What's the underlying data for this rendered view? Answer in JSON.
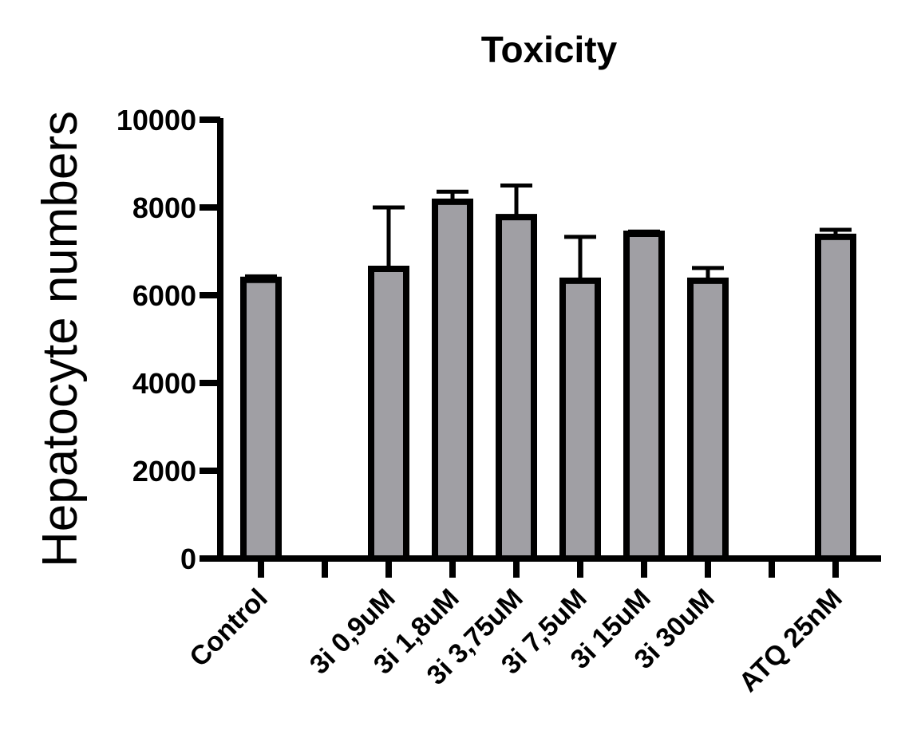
{
  "chart_data": {
    "type": "bar",
    "title": "Toxicity",
    "xlabel": "",
    "ylabel": "Hepatocyte numbers",
    "ylim": [
      0,
      10000
    ],
    "yticks": [
      0,
      2000,
      4000,
      6000,
      8000,
      10000
    ],
    "categories": [
      "Control",
      "",
      "3i 0,9uM",
      "3i 1,8uM",
      "3i 3,75uM",
      "3i 7,5uM",
      "3i 15uM",
      "3i 30uM",
      "",
      "ATQ 25nM"
    ],
    "values": [
      6350,
      null,
      6600,
      8130,
      7780,
      6330,
      7400,
      6330,
      null,
      7330
    ],
    "errors": [
      80,
      null,
      1400,
      230,
      720,
      1000,
      50,
      290,
      null,
      160
    ],
    "colors": {
      "bar_fill": "#a09fa4",
      "bar_stroke": "#000000",
      "axis": "#000000"
    },
    "grid": false,
    "legend": "none"
  }
}
